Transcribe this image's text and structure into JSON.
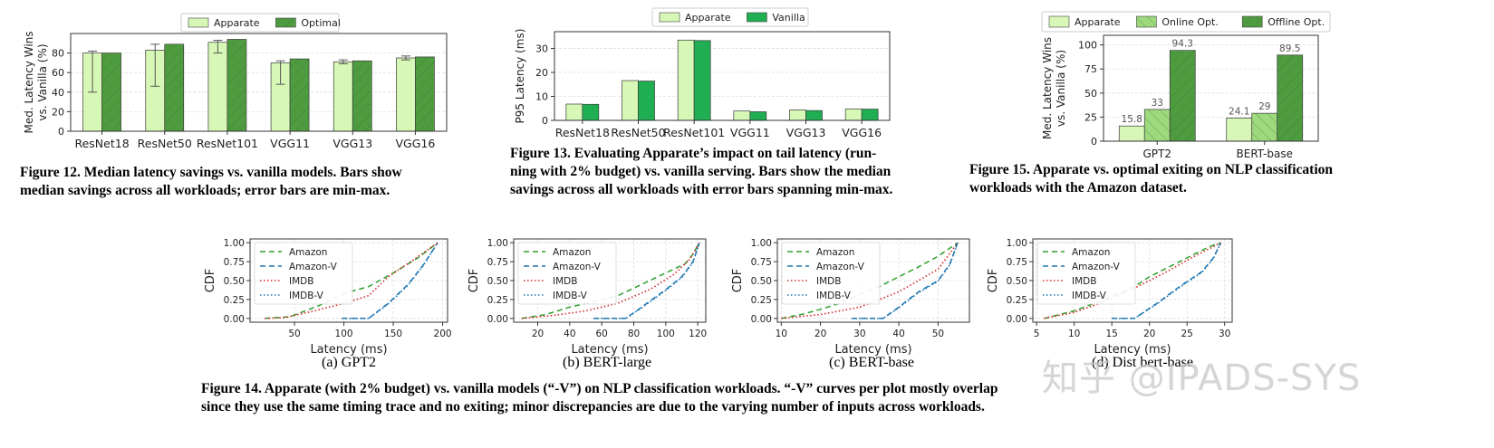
{
  "colors": {
    "light": "#d6f7b6",
    "mid": "#9ed97e",
    "dark": "#4f9c40",
    "vanilla": "#1fae52",
    "amazon": "#2ca02c",
    "amazonv": "#1f77b4",
    "imdb": "#d62728",
    "imdbv": "#1f77b4"
  },
  "captions": {
    "fig12": [
      "Figure 12. Median latency savings vs. vanilla models. Bars show",
      "median savings across all workloads; error bars are min-max."
    ],
    "fig13": [
      "Figure 13. Evaluating Apparate’s impact on tail latency (run-",
      "ning with 2% budget) vs. vanilla serving. Bars show the median",
      "savings across all workloads with error bars spanning min-max."
    ],
    "fig15": [
      "Figure 15. Apparate vs. optimal exiting on NLP classification",
      "workloads with the Amazon dataset."
    ],
    "fig14": [
      "Figure 14. Apparate (with 2% budget) vs. vanilla models (“-V”) on NLP classification workloads. “-V” curves per plot mostly overlap",
      "since they use the same timing trace and no exiting; minor discrepancies are due to the varying number of inputs across workloads."
    ]
  },
  "subcaptions": [
    "(a) GPT2",
    "(b) BERT-large",
    "(c) BERT-base",
    "(d) Dist bert-base"
  ],
  "watermark": "知乎 @IPADS-SYS",
  "chart_data": [
    {
      "id": "fig12",
      "type": "bar",
      "categories": [
        "ResNet18",
        "ResNet50",
        "ResNet101",
        "VGG11",
        "VGG13",
        "VGG16"
      ],
      "ylabel": "Med. Latency Wins\nvs. Vanilla (%)",
      "ylim": [
        0,
        100
      ],
      "yticks": [
        0,
        20,
        40,
        60,
        80
      ],
      "legend": "top-center",
      "series": [
        {
          "name": "Apparate",
          "values": [
            80,
            83,
            91,
            70,
            71,
            75
          ],
          "err_min": [
            40,
            46,
            80,
            48,
            69,
            73
          ],
          "err_max": [
            82,
            89,
            93,
            72,
            73,
            77
          ]
        },
        {
          "name": "Optimal",
          "values": [
            80,
            89,
            94,
            74,
            72,
            76
          ]
        }
      ]
    },
    {
      "id": "fig13",
      "type": "bar",
      "categories": [
        "ResNet18",
        "ResNet50",
        "ResNet101",
        "VGG11",
        "VGG13",
        "VGG16"
      ],
      "ylabel": "P95 Latency (ms)",
      "ylim": [
        0,
        37
      ],
      "yticks": [
        0,
        10,
        20,
        30
      ],
      "legend": "top-center",
      "series": [
        {
          "name": "Apparate",
          "values": [
            6.8,
            16.6,
            33.5,
            3.9,
            4.4,
            4.8
          ]
        },
        {
          "name": "Vanilla",
          "values": [
            6.7,
            16.4,
            33.3,
            3.6,
            4.1,
            4.7
          ]
        }
      ]
    },
    {
      "id": "fig15",
      "type": "bar",
      "categories": [
        "GPT2",
        "BERT-base"
      ],
      "ylabel": "Med. Latency Wins\nvs. Vanilla (%)",
      "ylim": [
        0,
        110
      ],
      "yticks": [
        0,
        25,
        50,
        75,
        100
      ],
      "legend": "top-center",
      "series": [
        {
          "name": "Apparate",
          "values": [
            15.8,
            24.1
          ],
          "labels": [
            "15.8",
            "24.1"
          ]
        },
        {
          "name": "Online Opt.",
          "values": [
            33,
            29
          ],
          "labels": [
            "33",
            "29"
          ]
        },
        {
          "name": "Offline Opt.",
          "values": [
            94.3,
            89.5
          ],
          "labels": [
            "94.3",
            "89.5"
          ]
        }
      ]
    },
    {
      "id": "cdf-a",
      "type": "line",
      "xlabel": "Latency (ms)",
      "ylabel": "CDF",
      "xlim": [
        5,
        205
      ],
      "ylim": [
        -0.05,
        1.05
      ],
      "xticks": [
        50,
        100,
        150,
        200
      ],
      "yticks": [
        0,
        0.25,
        0.5,
        0.75,
        1
      ],
      "legend": "top-left",
      "series": [
        {
          "name": "Amazon",
          "x": [
            20,
            45,
            75,
            100,
            125,
            150,
            175,
            195
          ],
          "y": [
            0,
            0.02,
            0.17,
            0.33,
            0.42,
            0.6,
            0.8,
            1
          ]
        },
        {
          "name": "Amazon-V",
          "x": [
            98,
            125,
            145,
            165,
            180,
            195
          ],
          "y": [
            0,
            0,
            0.2,
            0.45,
            0.7,
            1
          ]
        },
        {
          "name": "IMDB",
          "x": [
            20,
            40,
            70,
            100,
            125,
            145,
            170,
            195
          ],
          "y": [
            0,
            0.01,
            0.1,
            0.2,
            0.3,
            0.55,
            0.77,
            1
          ]
        },
        {
          "name": "IMDB-V",
          "x": [
            98,
            125,
            145,
            165,
            180,
            195
          ],
          "y": [
            0,
            0,
            0.19,
            0.44,
            0.69,
            1
          ]
        }
      ]
    },
    {
      "id": "cdf-b",
      "type": "line",
      "xlabel": "Latency (ms)",
      "ylabel": "CDF",
      "xlim": [
        5,
        125
      ],
      "ylim": [
        -0.05,
        1.05
      ],
      "xticks": [
        20,
        40,
        60,
        80,
        100,
        120
      ],
      "yticks": [
        0,
        0.25,
        0.5,
        0.75,
        1
      ],
      "legend": "top-left",
      "series": [
        {
          "name": "Amazon",
          "x": [
            10,
            25,
            40,
            55,
            70,
            85,
            100,
            112,
            117,
            121
          ],
          "y": [
            0,
            0.05,
            0.15,
            0.22,
            0.3,
            0.45,
            0.6,
            0.72,
            0.85,
            1
          ]
        },
        {
          "name": "Amazon-V",
          "x": [
            55,
            75,
            85,
            100,
            110,
            117,
            121
          ],
          "y": [
            0,
            0,
            0.15,
            0.38,
            0.55,
            0.75,
            1
          ]
        },
        {
          "name": "IMDB",
          "x": [
            10,
            30,
            50,
            70,
            90,
            105,
            115,
            121
          ],
          "y": [
            0,
            0.04,
            0.1,
            0.2,
            0.38,
            0.58,
            0.78,
            1
          ]
        },
        {
          "name": "IMDB-V",
          "x": [
            55,
            75,
            85,
            100,
            110,
            117,
            121
          ],
          "y": [
            0,
            0,
            0.14,
            0.37,
            0.54,
            0.74,
            1
          ]
        }
      ]
    },
    {
      "id": "cdf-c",
      "type": "line",
      "xlabel": "Latency (ms)",
      "ylabel": "CDF",
      "xlim": [
        9,
        58
      ],
      "ylim": [
        -0.05,
        1.05
      ],
      "xticks": [
        10,
        20,
        30,
        40,
        50
      ],
      "yticks": [
        0,
        0.25,
        0.5,
        0.75,
        1
      ],
      "legend": "top-left",
      "series": [
        {
          "name": "Amazon",
          "x": [
            10,
            15,
            20,
            25,
            30,
            35,
            40,
            45,
            50,
            55
          ],
          "y": [
            0,
            0.05,
            0.12,
            0.2,
            0.32,
            0.42,
            0.55,
            0.68,
            0.82,
            1
          ]
        },
        {
          "name": "Amazon-V",
          "x": [
            28,
            36,
            40,
            45,
            50,
            53,
            55
          ],
          "y": [
            0,
            0,
            0.15,
            0.35,
            0.5,
            0.72,
            1
          ]
        },
        {
          "name": "IMDB",
          "x": [
            10,
            20,
            30,
            40,
            45,
            50,
            55
          ],
          "y": [
            0,
            0.05,
            0.15,
            0.35,
            0.5,
            0.65,
            1
          ]
        },
        {
          "name": "IMDB-V",
          "x": [
            28,
            36,
            40,
            45,
            50,
            53,
            55
          ],
          "y": [
            0,
            0,
            0.14,
            0.34,
            0.49,
            0.71,
            1
          ]
        }
      ]
    },
    {
      "id": "cdf-d",
      "type": "line",
      "xlabel": "Latency (ms)",
      "ylabel": "CDF",
      "xlim": [
        4.5,
        31
      ],
      "ylim": [
        -0.05,
        1.05
      ],
      "xticks": [
        5,
        10,
        15,
        20,
        25,
        30
      ],
      "yticks": [
        0,
        0.25,
        0.5,
        0.75,
        1
      ],
      "legend": "top-left",
      "series": [
        {
          "name": "Amazon",
          "x": [
            6,
            10,
            14,
            18,
            20,
            23,
            26,
            28,
            29.5
          ],
          "y": [
            0,
            0.1,
            0.25,
            0.42,
            0.55,
            0.7,
            0.85,
            0.95,
            1
          ]
        },
        {
          "name": "Amazon-V",
          "x": [
            15,
            18,
            21,
            24,
            27,
            28.5,
            29.5
          ],
          "y": [
            0,
            0,
            0.2,
            0.42,
            0.62,
            0.8,
            1
          ]
        },
        {
          "name": "IMDB",
          "x": [
            6,
            10,
            14,
            18,
            22,
            26,
            29.5
          ],
          "y": [
            0,
            0.08,
            0.22,
            0.4,
            0.6,
            0.82,
            1
          ]
        },
        {
          "name": "IMDB-V",
          "x": [
            15,
            18,
            21,
            24,
            27,
            28.5,
            29.5
          ],
          "y": [
            0,
            0,
            0.19,
            0.41,
            0.61,
            0.79,
            1
          ]
        }
      ]
    }
  ]
}
